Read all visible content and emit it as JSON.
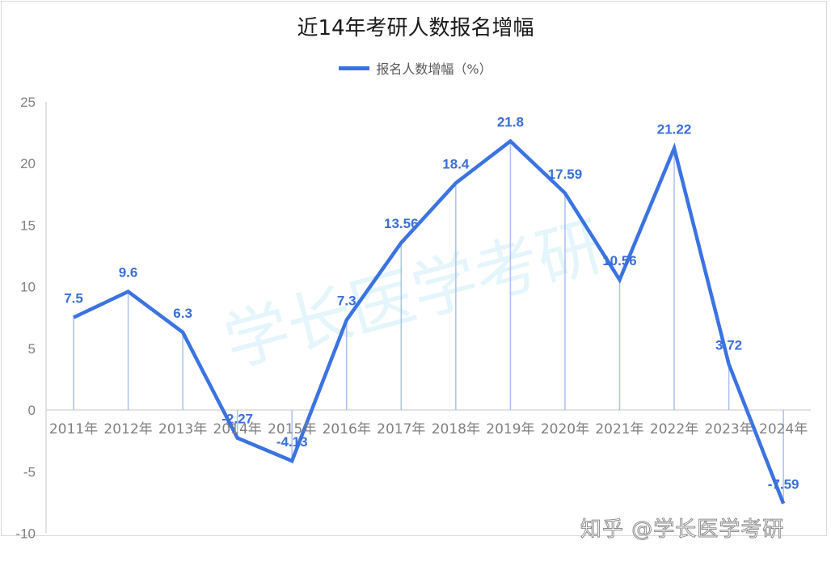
{
  "chart_data": {
    "type": "line",
    "title": "近14年考研人数报名增幅",
    "xlabel": "",
    "ylabel": "",
    "ylim": [
      -10,
      25
    ],
    "yticks": [
      25,
      20,
      15,
      10,
      5,
      0,
      -5,
      -10
    ],
    "categories": [
      "2011年",
      "2012年",
      "2013年",
      "2014年",
      "2015年",
      "2016年",
      "2017年",
      "2018年",
      "2019年",
      "2020年",
      "2021年",
      "2022年",
      "2023年",
      "2024年"
    ],
    "series": [
      {
        "name": "报名人数增幅（%）",
        "values": [
          7.5,
          9.6,
          6.3,
          -2.27,
          -4.13,
          7.3,
          13.56,
          18.4,
          21.8,
          17.59,
          10.56,
          21.22,
          3.72,
          -7.59
        ],
        "labels": [
          "7.5",
          "9.6",
          "6.3",
          "-2.27",
          "-4.13",
          "7.3",
          "13.56",
          "18.4",
          "21.8",
          "17.59",
          "10.56",
          "21.22",
          "3.72",
          "-7.59"
        ],
        "color": "#3b73e0"
      }
    ],
    "grid": false,
    "drop_lines": true,
    "legend_position": "top"
  },
  "title": "近14年考研人数报名增幅",
  "legend": {
    "label": "报名人数增幅（%）",
    "color": "#3b73e0"
  },
  "watermark": {
    "text": "学长医学考研"
  },
  "credit": {
    "text": "知乎 @学长医学考研"
  },
  "colors": {
    "line": "#3b73e0",
    "label": "#3b6fd6",
    "dropline": "#a9c1ec",
    "axis": "#d9d9d9",
    "tick": "#808080"
  }
}
